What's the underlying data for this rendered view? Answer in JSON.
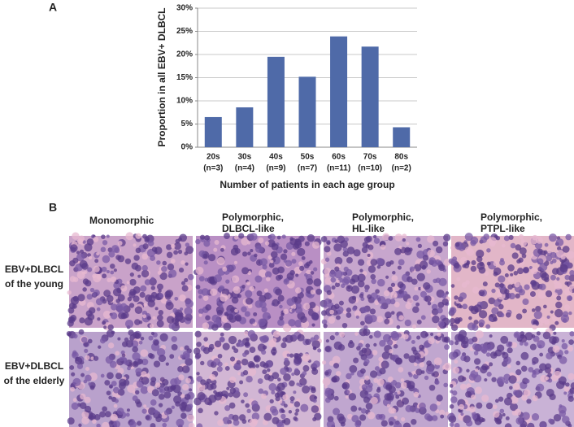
{
  "chart_data": {
    "type": "bar",
    "panel_label": "A",
    "y_label": "Proportion in all EBV+ DLBCL",
    "x_label": "Number of patients in each age group",
    "categories": [
      "20s",
      "30s",
      "40s",
      "50s",
      "60s",
      "70s",
      "80s"
    ],
    "category_counts": [
      "(n=3)",
      "(n=4)",
      "(n=9)",
      "(n=7)",
      "(n=11)",
      "(n=10)",
      "(n=2)"
    ],
    "values": [
      6.5,
      8.6,
      19.5,
      15.2,
      23.9,
      21.7,
      4.3
    ],
    "color": "#4f6aa8",
    "ylim": [
      0,
      30
    ],
    "yticks": [
      {
        "value": 0,
        "label": "0%"
      },
      {
        "value": 5,
        "label": "5%"
      },
      {
        "value": 10,
        "label": "10%"
      },
      {
        "value": 15,
        "label": "15%"
      },
      {
        "value": 20,
        "label": "20%"
      },
      {
        "value": 25,
        "label": "25%"
      },
      {
        "value": 30,
        "label": "30%"
      }
    ],
    "grid": true
  },
  "panel_b": {
    "label": "B",
    "columns": [
      [
        "Monomorphic"
      ],
      [
        "Polymorphic,",
        "DLBCL-like"
      ],
      [
        "Polymorphic,",
        "HL-like"
      ],
      [
        "Polymorphic,",
        "PTPL-like"
      ]
    ],
    "rows": [
      [
        "EBV+DLBCL",
        "of the young"
      ],
      [
        "EBV+DLBCL",
        "of the elderly"
      ]
    ]
  }
}
